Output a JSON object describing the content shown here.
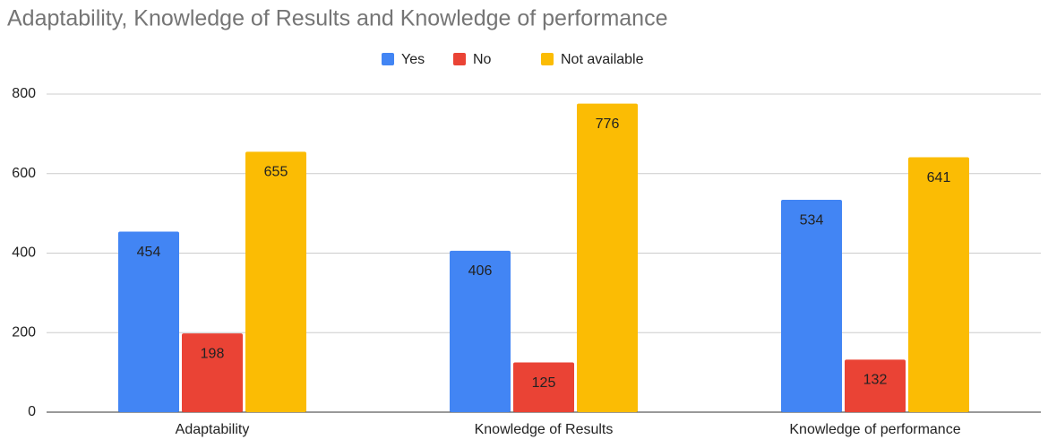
{
  "chart_data": {
    "type": "bar",
    "title": "Adaptability, Knowledge of Results and Knowledge of performance",
    "categories": [
      "Adaptability",
      "Knowledge of Results",
      "Knowledge of performance"
    ],
    "series": [
      {
        "name": "Yes",
        "color": "#4285f4",
        "values": [
          454,
          406,
          534
        ]
      },
      {
        "name": "No",
        "color": "#ea4335",
        "values": [
          198,
          125,
          132
        ]
      },
      {
        "name": "Not available",
        "color": "#fbbc04",
        "values": [
          655,
          776,
          641
        ]
      }
    ],
    "ylim": [
      0,
      800
    ],
    "yticks": [
      0,
      200,
      400,
      600,
      800
    ],
    "grid": true,
    "legend": "top"
  }
}
